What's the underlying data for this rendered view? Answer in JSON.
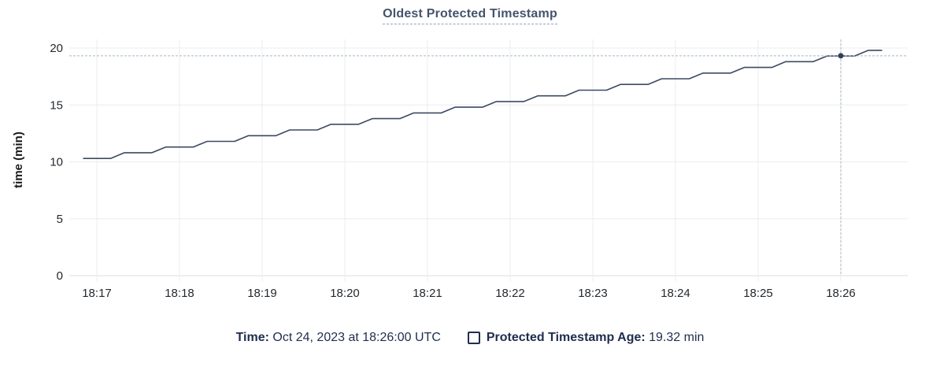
{
  "header": {
    "title": "Oldest Protected Timestamp"
  },
  "axes": {
    "y_title": "time (min)"
  },
  "legend": {
    "time_label": "Time:",
    "time_value": "Oct 24, 2023 at 18:26:00 UTC",
    "series_label": "Protected Timestamp Age:",
    "series_value": "19.32 min",
    "checkbox_icon": "unchecked-square"
  },
  "colors": {
    "line": "#3c4a63",
    "marker": "#32405a",
    "crosshair": "#a4b8c6",
    "grid": "#ececec",
    "grid_baseline": "#d9dcdf",
    "axis_text": "#24292e",
    "y_axis_title_text": "#1a1a1a",
    "title_text": "#44546d",
    "legend_text": "#1f2d4d"
  },
  "chart_data": {
    "type": "line",
    "title": "Oldest Protected Timestamp",
    "xlabel": "",
    "ylabel": "time (min)",
    "ylim": [
      0,
      20
    ],
    "y_ticks": [
      0,
      5,
      10,
      15,
      20
    ],
    "grid": true,
    "legend_position": "bottom",
    "x_start_time": "18:16:50",
    "sample_interval_sec": 10,
    "x_ticks": [
      {
        "label": "18:17",
        "offset_sec": 10
      },
      {
        "label": "18:18",
        "offset_sec": 70
      },
      {
        "label": "18:19",
        "offset_sec": 130
      },
      {
        "label": "18:20",
        "offset_sec": 190
      },
      {
        "label": "18:21",
        "offset_sec": 250
      },
      {
        "label": "18:22",
        "offset_sec": 310
      },
      {
        "label": "18:23",
        "offset_sec": 370
      },
      {
        "label": "18:24",
        "offset_sec": 430
      },
      {
        "label": "18:25",
        "offset_sec": 490
      },
      {
        "label": "18:26",
        "offset_sec": 550
      }
    ],
    "series": [
      {
        "name": "Protected Timestamp Age",
        "unit": "min",
        "values": [
          10.3,
          10.3,
          10.3,
          10.8,
          10.8,
          10.8,
          11.3,
          11.3,
          11.3,
          11.8,
          11.8,
          11.8,
          12.3,
          12.3,
          12.3,
          12.8,
          12.8,
          12.8,
          13.3,
          13.3,
          13.3,
          13.8,
          13.8,
          13.8,
          14.3,
          14.3,
          14.3,
          14.8,
          14.8,
          14.8,
          15.3,
          15.3,
          15.3,
          15.8,
          15.8,
          15.8,
          16.3,
          16.3,
          16.3,
          16.8,
          16.8,
          16.8,
          17.3,
          17.3,
          17.3,
          17.8,
          17.8,
          17.8,
          18.3,
          18.3,
          18.3,
          18.8,
          18.8,
          18.8,
          19.3,
          19.3,
          19.3,
          19.8,
          19.8
        ]
      }
    ],
    "crosshair": {
      "time": "18:26:00",
      "offset_sec": 550,
      "value": 19.32
    }
  }
}
